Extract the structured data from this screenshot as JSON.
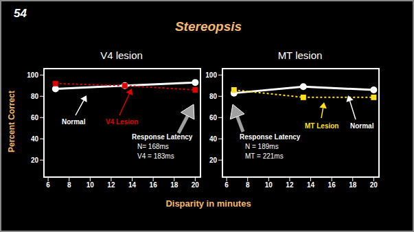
{
  "slide_number": "54",
  "title": "Stereopsis",
  "y_label": "Percent Correct",
  "x_label": "Disparity in minutes",
  "chart_data": [
    {
      "type": "line",
      "title": "V4 lesion",
      "x": [
        6.7,
        13.3,
        20
      ],
      "xlim": [
        5.6,
        20.5
      ],
      "xticks": [
        6,
        8,
        10,
        12,
        14,
        16,
        18,
        20
      ],
      "ylim": [
        4,
        106
      ],
      "yticks": [
        20,
        40,
        60,
        80,
        100
      ],
      "grid": false,
      "series": [
        {
          "name": "Normal",
          "color": "#ffffff",
          "values": [
            87,
            90,
            93
          ],
          "marker": "circle",
          "line_style": "solid"
        },
        {
          "name": "V4 Lesion",
          "color": "#e00000",
          "values": [
            92,
            90,
            86
          ],
          "marker": "square",
          "line_style": "dotted"
        }
      ],
      "annotations": [
        "Response Latency",
        "N= 168ms",
        "V4 = 183ms"
      ]
    },
    {
      "type": "line",
      "title": "MT lesion",
      "x": [
        6.7,
        13.3,
        20
      ],
      "xlim": [
        5.6,
        20.5
      ],
      "xticks": [
        6,
        8,
        10,
        12,
        14,
        16,
        18,
        20
      ],
      "ylim": [
        4,
        106
      ],
      "yticks": [
        20,
        40,
        60,
        80,
        100
      ],
      "grid": false,
      "series": [
        {
          "name": "Normal",
          "color": "#ffffff",
          "values": [
            83,
            89,
            86
          ],
          "marker": "circle",
          "line_style": "solid"
        },
        {
          "name": "MT Lesion",
          "color": "#ffe020",
          "values": [
            86,
            79,
            79
          ],
          "marker": "square",
          "line_style": "dotted"
        }
      ],
      "annotations": [
        "Response Latency",
        "N = 189ms",
        "MT = 221ms"
      ]
    }
  ]
}
